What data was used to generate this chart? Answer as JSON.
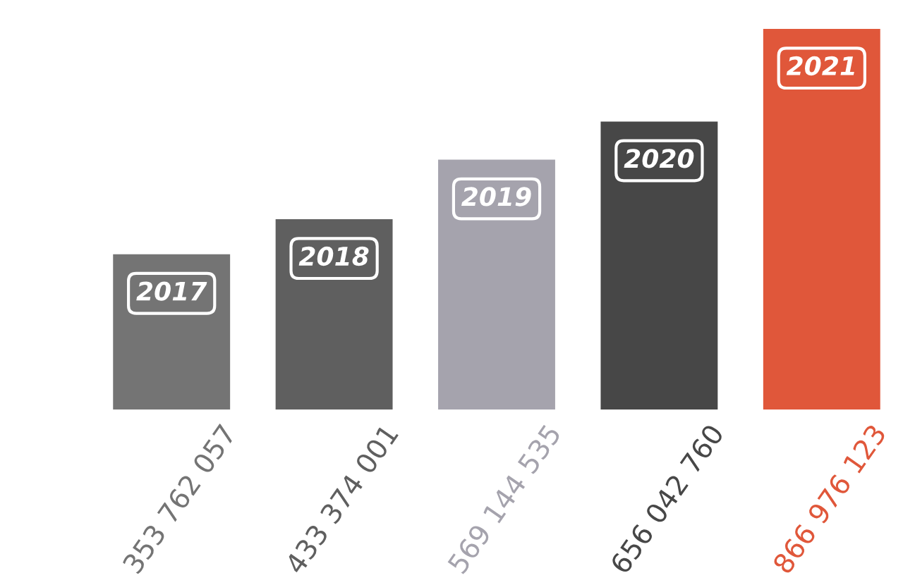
{
  "chart_data": {
    "type": "bar",
    "categories": [
      "2017",
      "2018",
      "2019",
      "2020",
      "2021"
    ],
    "values": [
      353762057,
      433374001,
      569144535,
      656042760,
      866976123
    ],
    "colors": [
      "#747474",
      "#5f5f5f",
      "#a5a3ad",
      "#474747",
      "#e0573a"
    ],
    "value_labels": [
      "353 762 057",
      "433 374 001",
      "569 144 535",
      "656 042 760",
      "866 976 123"
    ]
  }
}
